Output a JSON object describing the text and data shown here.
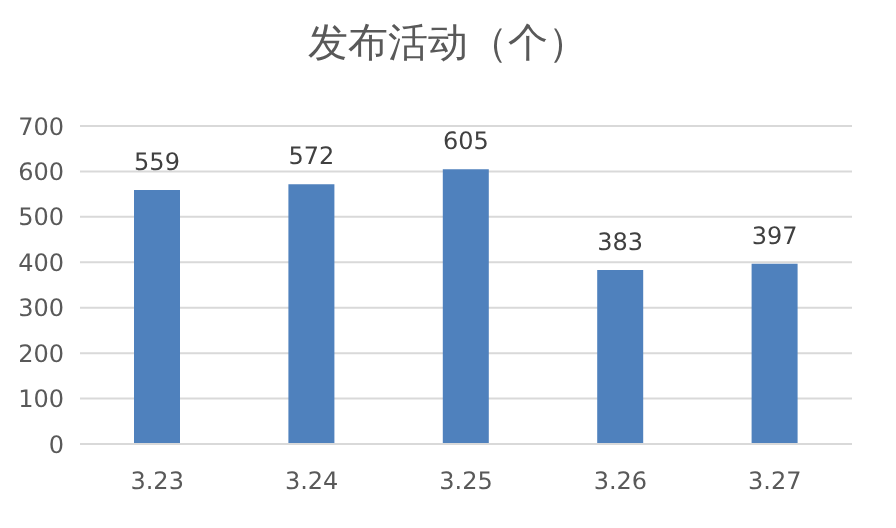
{
  "chart_data": {
    "type": "bar",
    "title": "发布活动（个）",
    "categories": [
      "3.23",
      "3.24",
      "3.25",
      "3.26",
      "3.27"
    ],
    "values": [
      559,
      572,
      605,
      383,
      397
    ],
    "color": "#4f81bd",
    "ylim": [
      0,
      700
    ],
    "yticks": [
      0,
      100,
      200,
      300,
      400,
      500,
      600,
      700
    ],
    "grid": "y",
    "data_labels": true
  }
}
